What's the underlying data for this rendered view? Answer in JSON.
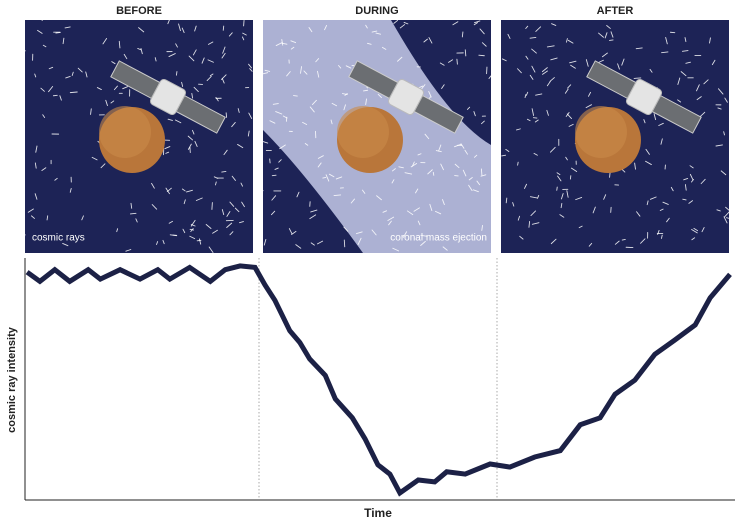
{
  "panels": [
    {
      "title": "BEFORE",
      "label": "cosmic rays"
    },
    {
      "title": "DURING",
      "label": "coronal mass ejection"
    },
    {
      "title": "AFTER"
    }
  ],
  "chart_data": {
    "type": "line",
    "xlabel": "Time",
    "ylabel": "cosmic ray intensity",
    "color": "#1c2146",
    "xlim": [
      0,
      100
    ],
    "ylim": [
      0,
      100
    ],
    "x": [
      0.3,
      2.1,
      4.2,
      6.3,
      8.9,
      10.6,
      13.4,
      16.2,
      18.7,
      20.4,
      23.2,
      26.1,
      28.2,
      30.3,
      32.4,
      33.8,
      35.2,
      37.3,
      38.7,
      40.1,
      42.3,
      43.7,
      46.1,
      47.9,
      49.7,
      51.4,
      52.8,
      55.4,
      57.7,
      59.4,
      62.0,
      65.5,
      68.3,
      71.8,
      75.4,
      78.2,
      81.0,
      83.1,
      85.9,
      88.7,
      91.5,
      94.4,
      96.5,
      99.3
    ],
    "values": [
      97,
      93,
      98,
      93,
      98,
      94,
      98,
      94,
      98,
      94,
      99,
      93,
      98,
      99.6,
      99,
      91.5,
      85,
      72,
      67,
      60,
      53,
      43,
      35,
      26,
      15,
      11,
      3,
      8.5,
      7.7,
      12,
      11,
      15.3,
      14,
      18.3,
      21,
      32,
      35,
      45,
      51,
      62,
      68,
      74.5,
      86,
      96
    ]
  }
}
